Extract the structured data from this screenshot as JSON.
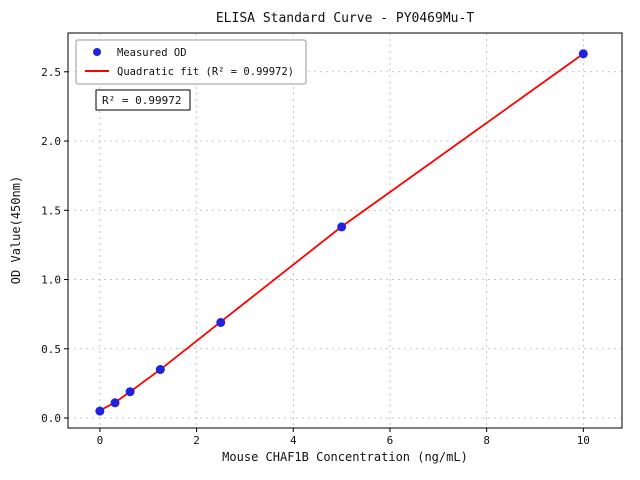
{
  "chart_data": {
    "type": "scatter",
    "title": "ELISA Standard Curve - PY0469Mu-T",
    "xlabel": "Mouse CHAF1B Concentration (ng/mL)",
    "ylabel": "OD Value(450nm)",
    "xlim": [
      -0.66,
      10.8
    ],
    "ylim": [
      -0.072,
      2.78
    ],
    "x_ticks": [
      0,
      2,
      4,
      6,
      8,
      10
    ],
    "y_ticks": [
      0.0,
      0.5,
      1.0,
      1.5,
      2.0,
      2.5
    ],
    "grid": true,
    "legend_position": "upper-left",
    "annotation": "R² = 0.99972",
    "r_squared": 0.99972,
    "colors": {
      "points": "#2222dd",
      "fit_line": "#ff0000",
      "grid": "#b5b5b5",
      "spine": "#000000"
    },
    "series": [
      {
        "name": "Measured OD",
        "kind": "scatter",
        "color": "#2222dd",
        "x": [
          0,
          0.3125,
          0.625,
          1.25,
          2.5,
          5,
          10
        ],
        "y": [
          0.05,
          0.11,
          0.19,
          0.35,
          0.69,
          1.38,
          2.63
        ]
      },
      {
        "name": "Quadratic fit (R² = 0.99972)",
        "kind": "line",
        "color": "#ff0000",
        "x": [
          0,
          0.3125,
          0.625,
          1.25,
          2.5,
          5,
          10
        ],
        "y": [
          0.055,
          0.112,
          0.19,
          0.35,
          0.695,
          1.382,
          2.63
        ]
      }
    ]
  }
}
